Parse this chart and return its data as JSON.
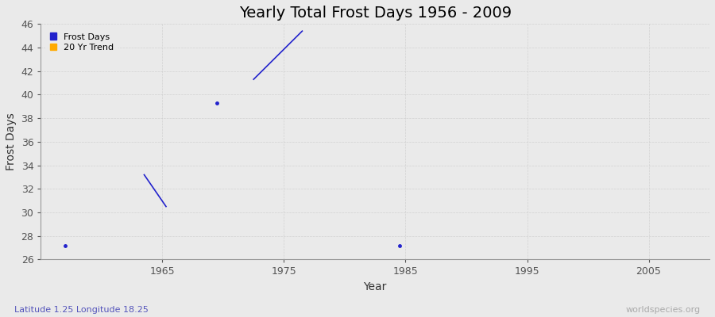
{
  "title": "Yearly Total Frost Days 1956 - 2009",
  "xlabel": "Year",
  "ylabel": "Frost Days",
  "xlim": [
    1955,
    2010
  ],
  "ylim": [
    26,
    46
  ],
  "yticks": [
    26,
    28,
    30,
    32,
    34,
    36,
    38,
    40,
    42,
    44,
    46
  ],
  "xticks": [
    1965,
    1975,
    1985,
    1995,
    2005
  ],
  "background_color": "#eaeaea",
  "figure_color": "#eaeaea",
  "grid_color": "#cccccc",
  "line_color": "#2222cc",
  "frost_days_color": "#2222cc",
  "trend_color": "#ffaa00",
  "footer_left": "Latitude 1.25 Longitude 18.25",
  "footer_right": "worldspecies.org",
  "footer_left_color": "#5555bb",
  "footer_right_color": "#aaaaaa",
  "segments": [
    {
      "x": [
        1957.0
      ],
      "y": [
        27.2
      ]
    },
    {
      "x": [
        1963.5,
        1965.3
      ],
      "y": [
        33.2,
        30.5
      ]
    },
    {
      "x": [
        1969.5
      ],
      "y": [
        39.3
      ]
    },
    {
      "x": [
        1972.5,
        1976.5
      ],
      "y": [
        41.3,
        45.4
      ]
    },
    {
      "x": [
        1984.5
      ],
      "y": [
        27.2
      ]
    }
  ],
  "title_fontsize": 14,
  "axis_label_fontsize": 10,
  "tick_fontsize": 9,
  "legend_fontsize": 8,
  "footer_fontsize": 8
}
